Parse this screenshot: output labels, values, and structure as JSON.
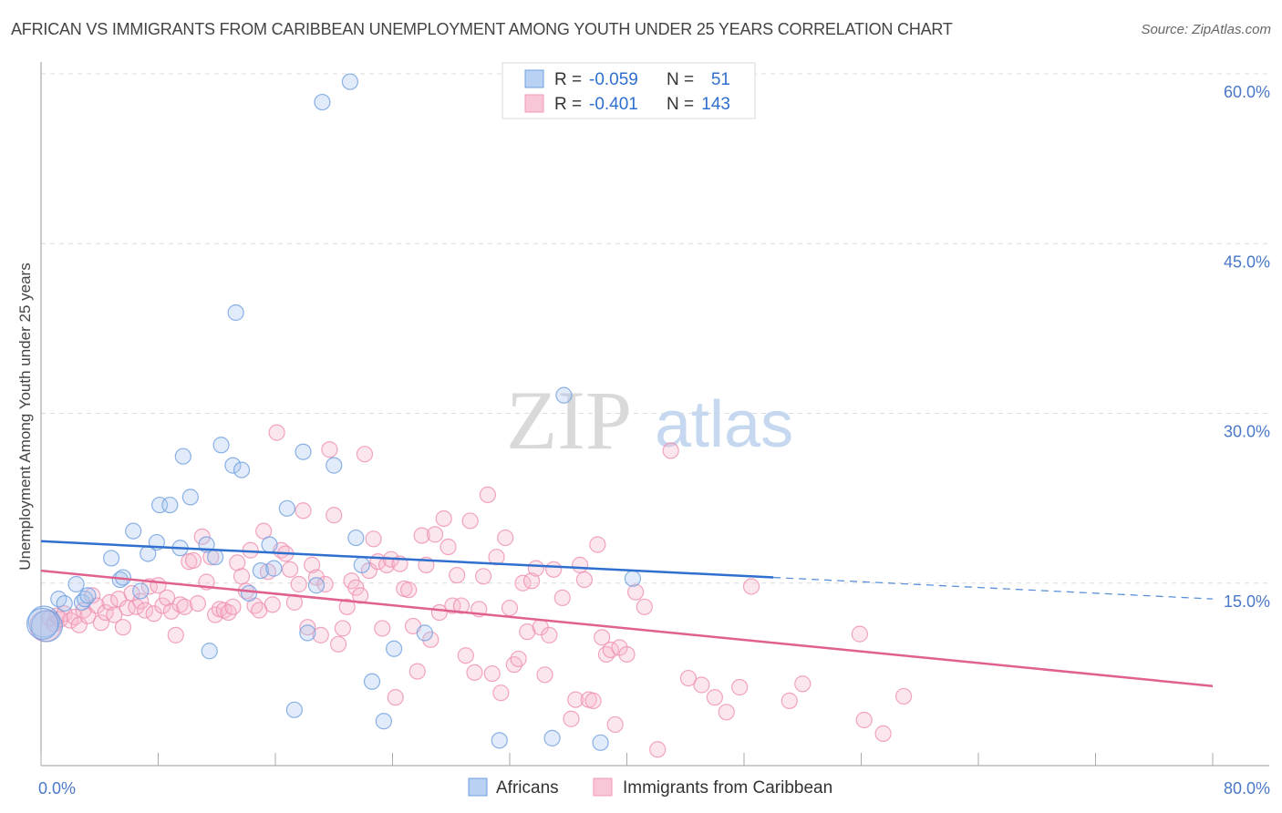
{
  "title": "AFRICAN VS IMMIGRANTS FROM CARIBBEAN UNEMPLOYMENT AMONG YOUTH UNDER 25 YEARS CORRELATION CHART",
  "source": "Source: ZipAtlas.com",
  "watermark": {
    "zip": "ZIP",
    "atlas": "atlas"
  },
  "legend": {
    "rows": [
      {
        "r_label": "R =",
        "r_value": "-0.059",
        "n_label": "N =",
        "n_value": "51"
      },
      {
        "r_label": "R =",
        "r_value": "-0.401",
        "n_label": "N =",
        "n_value": "143"
      }
    ]
  },
  "chart_data": {
    "type": "scatter",
    "title": "AFRICAN VS IMMIGRANTS FROM CARIBBEAN UNEMPLOYMENT AMONG YOUTH UNDER 25 YEARS CORRELATION CHART",
    "xlabel": "",
    "ylabel": "Unemployment Among Youth under 25 years",
    "xlim": [
      0,
      80
    ],
    "ylim": [
      0,
      63
    ],
    "x_tick_labels": [
      "0.0%",
      "80.0%"
    ],
    "y_ticks": [
      15,
      30,
      45,
      60
    ],
    "y_tick_labels": [
      "15.0%",
      "30.0%",
      "45.0%",
      "60.0%"
    ],
    "grid": true,
    "legend_position": "top-center",
    "colors": {
      "Africans": "#6f9fe0",
      "Immigrants from Caribbean": "#f29ab8",
      "Africans_line": "#2f6fcf",
      "Immigrants from Caribbean_line": "#e0608f"
    },
    "series": [
      {
        "name": "Africans",
        "r": -0.059,
        "n": 51,
        "trend": {
          "x0": 0,
          "y0": 18.7,
          "x1": 50,
          "y1": 15.5,
          "dashed_to_x": 80,
          "dashed_to_y": 13.6
        },
        "points": [
          [
            0.2,
            11.6
          ],
          [
            0.4,
            11.2
          ],
          [
            1.2,
            13.6
          ],
          [
            1.6,
            13.2
          ],
          [
            2.4,
            14.9
          ],
          [
            2.8,
            13.3
          ],
          [
            3.0,
            13.6
          ],
          [
            3.2,
            13.9
          ],
          [
            4.8,
            17.2
          ],
          [
            5.4,
            15.3
          ],
          [
            5.6,
            15.5
          ],
          [
            6.3,
            19.6
          ],
          [
            6.8,
            14.3
          ],
          [
            7.3,
            17.6
          ],
          [
            7.9,
            18.6
          ],
          [
            8.1,
            21.9
          ],
          [
            8.8,
            21.9
          ],
          [
            9.5,
            18.1
          ],
          [
            9.7,
            26.2
          ],
          [
            10.2,
            22.6
          ],
          [
            11.3,
            18.4
          ],
          [
            11.5,
            9.0
          ],
          [
            11.9,
            17.3
          ],
          [
            12.3,
            27.2
          ],
          [
            13.1,
            25.4
          ],
          [
            13.3,
            38.9
          ],
          [
            13.7,
            25.0
          ],
          [
            14.2,
            14.1
          ],
          [
            15.0,
            16.1
          ],
          [
            15.6,
            18.4
          ],
          [
            15.9,
            16.3
          ],
          [
            16.8,
            21.6
          ],
          [
            17.3,
            3.8
          ],
          [
            17.9,
            26.6
          ],
          [
            18.2,
            10.6
          ],
          [
            18.8,
            14.8
          ],
          [
            19.2,
            57.5
          ],
          [
            20.0,
            25.4
          ],
          [
            21.1,
            59.3
          ],
          [
            21.5,
            19.0
          ],
          [
            21.9,
            16.6
          ],
          [
            22.6,
            6.3
          ],
          [
            23.4,
            2.8
          ],
          [
            24.1,
            9.2
          ],
          [
            26.2,
            10.6
          ],
          [
            31.3,
            1.1
          ],
          [
            34.9,
            1.3
          ],
          [
            35.7,
            31.6
          ],
          [
            38.2,
            0.9
          ],
          [
            40.4,
            15.4
          ],
          [
            0.1,
            11.4
          ]
        ]
      },
      {
        "name": "Immigrants from Caribbean",
        "r": -0.401,
        "n": 143,
        "trend": {
          "x0": 0,
          "y0": 16.1,
          "x1": 80,
          "y1": 5.9
        },
        "points": [
          [
            0.3,
            11.2
          ],
          [
            0.6,
            11.9
          ],
          [
            0.9,
            11.4
          ],
          [
            1.1,
            12.1
          ],
          [
            1.3,
            11.8
          ],
          [
            1.6,
            12.3
          ],
          [
            2.0,
            11.7
          ],
          [
            2.3,
            12.0
          ],
          [
            2.6,
            11.3
          ],
          [
            2.9,
            12.6
          ],
          [
            3.2,
            12.1
          ],
          [
            3.5,
            13.9
          ],
          [
            3.8,
            13.0
          ],
          [
            4.1,
            11.5
          ],
          [
            4.4,
            12.4
          ],
          [
            4.7,
            13.3
          ],
          [
            5.0,
            12.2
          ],
          [
            5.3,
            13.6
          ],
          [
            5.6,
            11.1
          ],
          [
            5.9,
            12.8
          ],
          [
            6.2,
            14.1
          ],
          [
            6.5,
            12.9
          ],
          [
            6.8,
            13.4
          ],
          [
            7.1,
            12.6
          ],
          [
            7.4,
            14.7
          ],
          [
            7.7,
            12.3
          ],
          [
            8.0,
            14.8
          ],
          [
            8.3,
            13.0
          ],
          [
            8.6,
            13.7
          ],
          [
            8.9,
            12.5
          ],
          [
            9.2,
            10.4
          ],
          [
            9.5,
            13.1
          ],
          [
            9.8,
            12.9
          ],
          [
            10.1,
            16.9
          ],
          [
            10.4,
            17.0
          ],
          [
            10.7,
            13.2
          ],
          [
            11.0,
            19.1
          ],
          [
            11.3,
            15.1
          ],
          [
            11.6,
            17.3
          ],
          [
            11.9,
            12.2
          ],
          [
            12.2,
            12.7
          ],
          [
            12.5,
            12.6
          ],
          [
            12.8,
            12.4
          ],
          [
            13.1,
            12.9
          ],
          [
            13.4,
            16.8
          ],
          [
            13.7,
            15.6
          ],
          [
            14.0,
            14.3
          ],
          [
            14.3,
            17.9
          ],
          [
            14.6,
            13.0
          ],
          [
            14.9,
            12.6
          ],
          [
            15.2,
            19.6
          ],
          [
            15.5,
            16.0
          ],
          [
            15.8,
            13.1
          ],
          [
            16.1,
            28.3
          ],
          [
            16.4,
            17.9
          ],
          [
            16.7,
            17.6
          ],
          [
            17.0,
            16.2
          ],
          [
            17.3,
            13.3
          ],
          [
            17.6,
            14.9
          ],
          [
            17.9,
            21.4
          ],
          [
            18.2,
            11.1
          ],
          [
            18.5,
            16.6
          ],
          [
            18.8,
            15.5
          ],
          [
            19.1,
            10.4
          ],
          [
            19.4,
            14.9
          ],
          [
            19.7,
            26.8
          ],
          [
            20.0,
            21.0
          ],
          [
            20.3,
            9.6
          ],
          [
            20.6,
            11.0
          ],
          [
            20.9,
            12.9
          ],
          [
            21.2,
            15.2
          ],
          [
            21.5,
            14.6
          ],
          [
            21.8,
            13.9
          ],
          [
            22.1,
            26.4
          ],
          [
            22.4,
            16.1
          ],
          [
            22.7,
            18.9
          ],
          [
            23.0,
            16.9
          ],
          [
            23.3,
            11.0
          ],
          [
            23.6,
            16.6
          ],
          [
            23.9,
            17.1
          ],
          [
            24.2,
            4.9
          ],
          [
            24.5,
            16.7
          ],
          [
            24.8,
            14.5
          ],
          [
            25.1,
            14.4
          ],
          [
            25.4,
            11.2
          ],
          [
            25.7,
            7.2
          ],
          [
            26.0,
            19.2
          ],
          [
            26.3,
            16.6
          ],
          [
            26.6,
            10.0
          ],
          [
            26.9,
            19.3
          ],
          [
            27.2,
            12.4
          ],
          [
            27.5,
            20.7
          ],
          [
            27.8,
            18.2
          ],
          [
            28.1,
            13.0
          ],
          [
            28.4,
            15.7
          ],
          [
            28.7,
            13.0
          ],
          [
            29.0,
            8.6
          ],
          [
            29.3,
            20.5
          ],
          [
            29.6,
            7.1
          ],
          [
            29.9,
            12.7
          ],
          [
            30.2,
            15.6
          ],
          [
            30.5,
            22.8
          ],
          [
            30.8,
            7.0
          ],
          [
            31.1,
            17.3
          ],
          [
            31.4,
            5.3
          ],
          [
            31.7,
            19.0
          ],
          [
            32.0,
            12.8
          ],
          [
            32.3,
            7.8
          ],
          [
            32.6,
            8.3
          ],
          [
            32.9,
            15.0
          ],
          [
            33.2,
            10.7
          ],
          [
            33.5,
            15.2
          ],
          [
            33.8,
            16.3
          ],
          [
            34.1,
            11.1
          ],
          [
            34.4,
            6.9
          ],
          [
            34.7,
            10.4
          ],
          [
            35.0,
            16.2
          ],
          [
            35.6,
            13.7
          ],
          [
            36.2,
            3.0
          ],
          [
            36.5,
            4.7
          ],
          [
            36.8,
            16.6
          ],
          [
            37.1,
            15.3
          ],
          [
            37.4,
            4.7
          ],
          [
            37.7,
            4.6
          ],
          [
            38.0,
            18.4
          ],
          [
            38.3,
            10.2
          ],
          [
            38.6,
            8.7
          ],
          [
            38.9,
            9.1
          ],
          [
            39.2,
            2.5
          ],
          [
            39.5,
            9.3
          ],
          [
            40.0,
            8.7
          ],
          [
            40.6,
            14.2
          ],
          [
            41.2,
            12.9
          ],
          [
            42.1,
            0.3
          ],
          [
            43.0,
            26.7
          ],
          [
            44.2,
            6.6
          ],
          [
            45.1,
            6.0
          ],
          [
            46.0,
            4.9
          ],
          [
            46.8,
            3.6
          ],
          [
            47.7,
            5.8
          ],
          [
            48.5,
            14.7
          ],
          [
            51.1,
            4.6
          ],
          [
            52.0,
            6.1
          ],
          [
            55.9,
            10.5
          ],
          [
            56.2,
            2.9
          ],
          [
            57.5,
            1.7
          ],
          [
            58.9,
            5.0
          ]
        ]
      }
    ]
  },
  "bottom_legend": [
    "Africans",
    "Immigrants from Caribbean"
  ]
}
